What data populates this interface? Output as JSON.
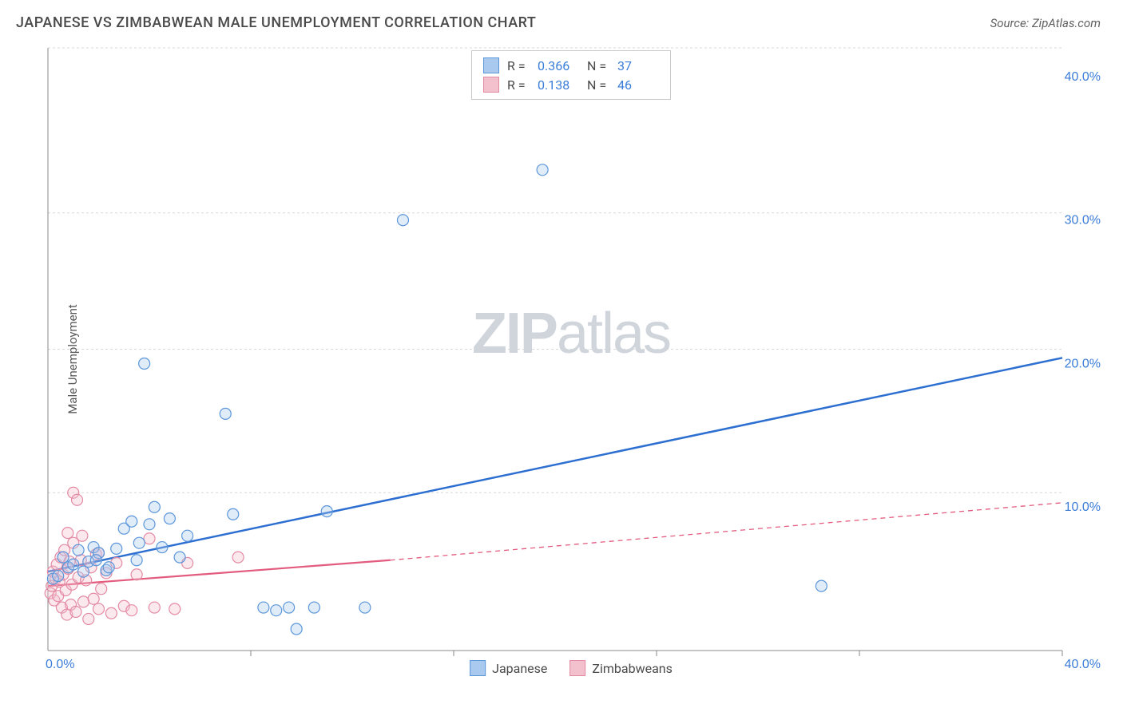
{
  "header": {
    "title": "JAPANESE VS ZIMBABWEAN MALE UNEMPLOYMENT CORRELATION CHART",
    "source": "Source: ZipAtlas.com"
  },
  "chart": {
    "type": "scatter",
    "y_axis_label": "Male Unemployment",
    "watermark_bold": "ZIP",
    "watermark_light": "atlas",
    "xlim": [
      0,
      40
    ],
    "ylim": [
      0,
      42
    ],
    "x_tick_values": [
      0,
      40
    ],
    "x_tick_labels": [
      "0.0%",
      "40.0%"
    ],
    "y_tick_values": [
      10,
      20,
      30,
      40
    ],
    "y_tick_labels": [
      "10.0%",
      "20.0%",
      "30.0%",
      "40.0%"
    ],
    "y_grid_values": [
      11,
      21,
      30.5,
      42
    ],
    "x_grid_values": [
      8,
      16,
      24,
      32,
      40
    ],
    "grid_color": "#d8d8d8",
    "axis_color": "#888888",
    "tick_label_color": "#3b7dd8",
    "background_color": "#ffffff",
    "marker_radius": 7,
    "marker_stroke_width": 1.2,
    "marker_fill_opacity": 0.35,
    "series": {
      "japanese": {
        "label": "Japanese",
        "color_fill": "#a9c9ef",
        "color_stroke": "#5b96da",
        "trend_color": "#2d6fd0",
        "trend_width": 2.5,
        "trend_start": [
          0,
          5.5
        ],
        "trend_end": [
          40,
          20.4
        ],
        "points": [
          [
            0.2,
            5.0
          ],
          [
            0.4,
            5.2
          ],
          [
            0.6,
            6.5
          ],
          [
            0.8,
            5.8
          ],
          [
            1.0,
            6.0
          ],
          [
            1.2,
            7.0
          ],
          [
            1.4,
            5.5
          ],
          [
            1.6,
            6.2
          ],
          [
            1.8,
            7.2
          ],
          [
            2.0,
            6.8
          ],
          [
            2.3,
            5.6
          ],
          [
            2.7,
            7.1
          ],
          [
            3.0,
            8.5
          ],
          [
            3.3,
            9.0
          ],
          [
            3.5,
            6.3
          ],
          [
            4.0,
            8.8
          ],
          [
            4.2,
            10.0
          ],
          [
            4.5,
            7.2
          ],
          [
            4.8,
            9.2
          ],
          [
            5.2,
            6.5
          ],
          [
            5.5,
            8.0
          ],
          [
            3.8,
            20.0
          ],
          [
            7.0,
            16.5
          ],
          [
            7.3,
            9.5
          ],
          [
            8.5,
            3.0
          ],
          [
            9.0,
            2.8
          ],
          [
            9.5,
            3.0
          ],
          [
            9.8,
            1.5
          ],
          [
            10.5,
            3.0
          ],
          [
            11.0,
            9.7
          ],
          [
            12.5,
            3.0
          ],
          [
            14.0,
            30.0
          ],
          [
            19.5,
            33.5
          ],
          [
            30.5,
            4.5
          ],
          [
            2.4,
            5.8
          ],
          [
            1.9,
            6.3
          ],
          [
            3.6,
            7.5
          ]
        ]
      },
      "zimbabweans": {
        "label": "Zimbabweans",
        "color_fill": "#f3c1cd",
        "color_stroke": "#e48ba4",
        "trend_color": "#e35b7e",
        "trend_width": 2.2,
        "trend_solid_start": [
          0,
          4.5
        ],
        "trend_solid_end": [
          13.5,
          6.3
        ],
        "trend_dash_end": [
          40,
          10.3
        ],
        "points": [
          [
            0.1,
            4.0
          ],
          [
            0.15,
            4.5
          ],
          [
            0.2,
            5.5
          ],
          [
            0.25,
            3.5
          ],
          [
            0.3,
            5.0
          ],
          [
            0.35,
            6.0
          ],
          [
            0.4,
            3.8
          ],
          [
            0.45,
            4.8
          ],
          [
            0.5,
            6.5
          ],
          [
            0.55,
            3.0
          ],
          [
            0.6,
            5.3
          ],
          [
            0.65,
            7.0
          ],
          [
            0.7,
            4.2
          ],
          [
            0.75,
            2.5
          ],
          [
            0.8,
            5.7
          ],
          [
            0.85,
            6.2
          ],
          [
            0.9,
            3.2
          ],
          [
            0.95,
            4.6
          ],
          [
            1.0,
            7.5
          ],
          [
            1.1,
            2.7
          ],
          [
            1.2,
            5.1
          ],
          [
            1.3,
            6.3
          ],
          [
            1.4,
            3.4
          ],
          [
            1.5,
            4.9
          ],
          [
            1.0,
            11.0
          ],
          [
            1.6,
            2.2
          ],
          [
            1.7,
            5.8
          ],
          [
            1.8,
            3.6
          ],
          [
            1.9,
            6.7
          ],
          [
            2.0,
            2.9
          ],
          [
            2.1,
            4.3
          ],
          [
            2.3,
            5.4
          ],
          [
            2.5,
            2.6
          ],
          [
            2.7,
            6.1
          ],
          [
            3.0,
            3.1
          ],
          [
            3.3,
            2.8
          ],
          [
            3.5,
            5.3
          ],
          [
            4.0,
            7.8
          ],
          [
            4.2,
            3.0
          ],
          [
            5.0,
            2.9
          ],
          [
            5.5,
            6.1
          ],
          [
            7.5,
            6.5
          ],
          [
            1.15,
            10.5
          ],
          [
            0.78,
            8.2
          ],
          [
            1.35,
            8.0
          ],
          [
            2.0,
            6.8
          ]
        ]
      }
    },
    "stats_box": {
      "rows": [
        {
          "swatch_fill": "#a9c9ef",
          "swatch_stroke": "#5b96da",
          "r_label": "R =",
          "r_value": "0.366",
          "n_label": "N =",
          "n_value": "37"
        },
        {
          "swatch_fill": "#f3c1cd",
          "swatch_stroke": "#e48ba4",
          "r_label": "R =",
          "r_value": "0.138",
          "n_label": "N =",
          "n_value": "46"
        }
      ]
    }
  }
}
